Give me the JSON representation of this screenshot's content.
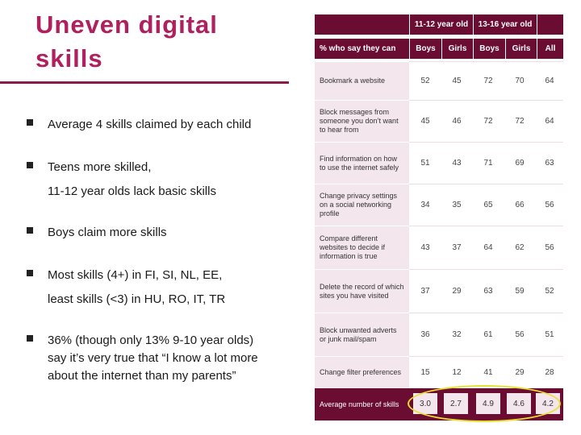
{
  "slide": {
    "title_line1": "Uneven digital",
    "title_line2": "skills"
  },
  "bullets": [
    {
      "lines": [
        "Average 4 skills claimed by each child"
      ]
    },
    {
      "lines": [
        "Teens more skilled,",
        "",
        "11-12 year olds lack basic skills"
      ]
    },
    {
      "lines": [
        "Boys claim more skills"
      ]
    },
    {
      "lines": [
        "Most skills (4+) in FI, SI, NL, EE,",
        "",
        "least skills (<3) in HU, RO, IT, TR"
      ]
    },
    {
      "lines": [
        "36% (though only 13% 9-10 year olds)",
        "say it’s very true that “I know a lot more",
        "about the internet than my parents”"
      ]
    }
  ],
  "table": {
    "header_age_groups": [
      "11-12 year old",
      "13-16 year old"
    ],
    "header_label": "% who say they can",
    "header_columns": [
      "Boys",
      "Girls",
      "Boys",
      "Girls",
      "All"
    ],
    "rows": [
      {
        "label": "Bookmark a website",
        "values": [
          "52",
          "45",
          "72",
          "70",
          "64"
        ]
      },
      {
        "label": "Block messages from someone you don’t want to hear from",
        "values": [
          "45",
          "46",
          "72",
          "72",
          "64"
        ]
      },
      {
        "label": "Find information on how to use the internet safely",
        "values": [
          "51",
          "43",
          "71",
          "69",
          "63"
        ]
      },
      {
        "label": "Change privacy settings on a social networking profile",
        "values": [
          "34",
          "35",
          "65",
          "66",
          "56"
        ]
      },
      {
        "label": "Compare different websites to decide if information is true",
        "values": [
          "43",
          "37",
          "64",
          "62",
          "56"
        ]
      },
      {
        "label": "Delete the record of which sites you have visited",
        "values": [
          "37",
          "29",
          "63",
          "59",
          "52"
        ]
      },
      {
        "label": "Block unwanted adverts or junk mail/spam",
        "values": [
          "36",
          "32",
          "61",
          "56",
          "51"
        ]
      },
      {
        "label": "Change filter preferences",
        "values": [
          "15",
          "12",
          "41",
          "29",
          "28"
        ]
      }
    ],
    "average_row": {
      "label": "Average number of skills",
      "values": [
        "3.0",
        "2.7",
        "4.9",
        "4.6",
        "4.2"
      ]
    },
    "colors": {
      "header": "#6b0d33",
      "label_bg": "#f3e6ec",
      "title": "#b0205e",
      "highlight": "#e8e030"
    }
  }
}
